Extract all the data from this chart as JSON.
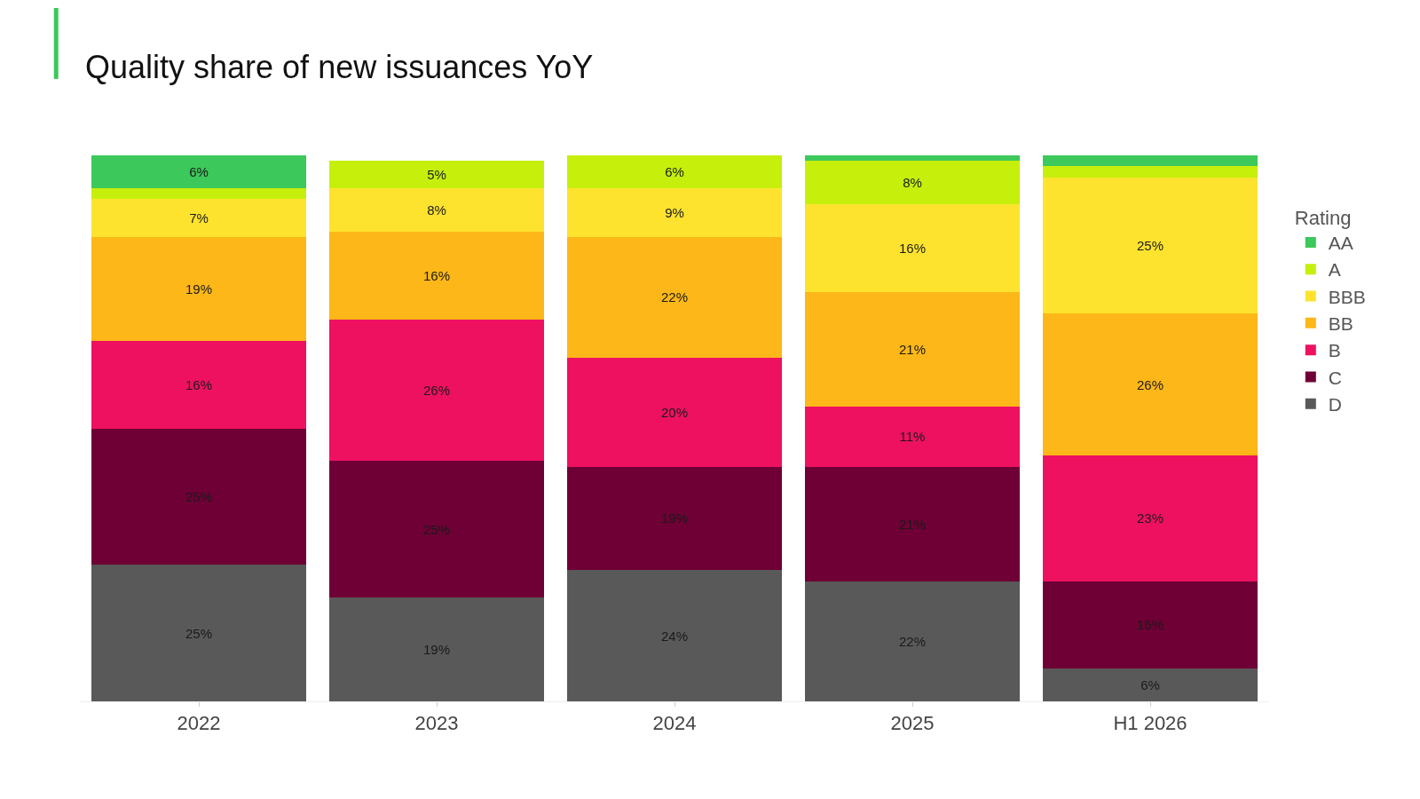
{
  "chart_data": {
    "type": "bar",
    "title": "Quality share of new issuances YoY",
    "legend_title": "Rating",
    "categories": [
      "2022",
      "2023",
      "2024",
      "2025",
      "H1 2026"
    ],
    "stacked": true,
    "legend": "top right",
    "ylim": [
      0,
      100
    ],
    "tick_labels": "x",
    "series": [
      {
        "name": "D",
        "color": "#595959",
        "values": [
          25,
          19,
          24,
          22,
          6
        ],
        "value_labels": [
          "25%",
          "19%",
          "24%",
          "22%",
          "6%"
        ]
      },
      {
        "name": "C",
        "color": "#6e0036",
        "values": [
          25,
          25,
          19,
          21,
          16
        ],
        "value_labels": [
          "25%",
          "25%",
          "19%",
          "21%",
          "16%"
        ]
      },
      {
        "name": "B",
        "color": "#ee1160",
        "values": [
          16,
          26,
          20,
          11,
          23
        ],
        "value_labels": [
          "16%",
          "26%",
          "20%",
          "11%",
          "23%"
        ]
      },
      {
        "name": "BB",
        "color": "#fdb718",
        "values": [
          19,
          16,
          22,
          21,
          26
        ],
        "value_labels": [
          "19%",
          "16%",
          "22%",
          "21%",
          "26%"
        ]
      },
      {
        "name": "BBB",
        "color": "#fde32e",
        "values": [
          7,
          8,
          9,
          16,
          25
        ],
        "value_labels": [
          "7%",
          "8%",
          "9%",
          "16%",
          "25%"
        ]
      },
      {
        "name": "A",
        "color": "#c6ef0c",
        "values": [
          2,
          5,
          6,
          8,
          2
        ],
        "value_labels": [
          null,
          "5%",
          "6%",
          "8%",
          null
        ]
      },
      {
        "name": "AA",
        "color": "#3cc85a",
        "values": [
          6,
          null,
          null,
          1,
          2
        ],
        "value_labels": [
          "6%",
          null,
          null,
          null,
          null
        ]
      }
    ]
  }
}
